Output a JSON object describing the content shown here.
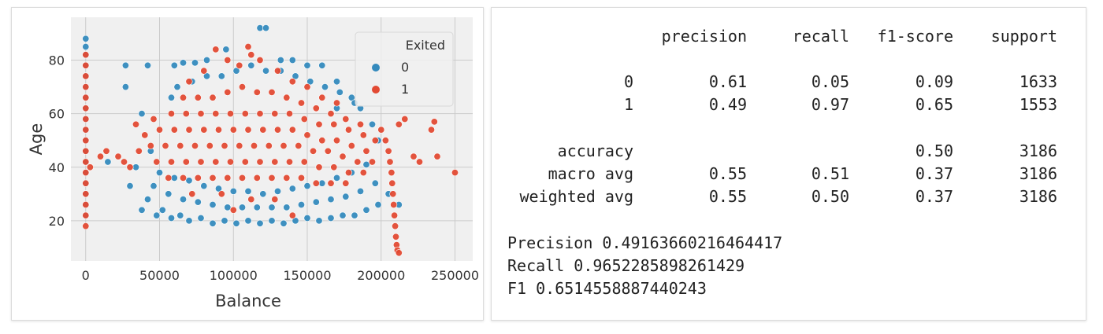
{
  "chart_data": {
    "type": "scatter",
    "title": "",
    "xlabel": "Balance",
    "ylabel": "Age",
    "xlim": [
      -10000,
      262000
    ],
    "ylim": [
      5,
      96
    ],
    "x_ticks": [
      0,
      50000,
      100000,
      150000,
      200000,
      250000
    ],
    "x_tick_labels": [
      "0",
      "50000",
      "100000",
      "150000",
      "200000",
      "250000"
    ],
    "y_ticks": [
      20,
      40,
      60,
      80
    ],
    "y_tick_labels": [
      "20",
      "40",
      "60",
      "80"
    ],
    "grid": true,
    "legend": {
      "title": "Exited",
      "placement": "top-right",
      "entries": [
        {
          "label": "0",
          "color": "#348ABD"
        },
        {
          "label": "1",
          "color": "#E24A33"
        }
      ]
    },
    "series": [
      {
        "name": "0",
        "color": "#348ABD",
        "points": [
          [
            0,
            88
          ],
          [
            0,
            85
          ],
          [
            0,
            82
          ],
          [
            0,
            78
          ],
          [
            0,
            74
          ],
          [
            0,
            70
          ],
          [
            0,
            66
          ],
          [
            0,
            62
          ],
          [
            0,
            58
          ],
          [
            0,
            54
          ],
          [
            0,
            50
          ],
          [
            0,
            46
          ],
          [
            0,
            42
          ],
          [
            0,
            38
          ],
          [
            0,
            34
          ],
          [
            0,
            30
          ],
          [
            0,
            26
          ],
          [
            0,
            22
          ],
          [
            27000,
            78
          ],
          [
            27000,
            70
          ],
          [
            42000,
            78
          ],
          [
            38000,
            60
          ],
          [
            60000,
            78
          ],
          [
            66000,
            79
          ],
          [
            74000,
            79
          ],
          [
            82000,
            80
          ],
          [
            95000,
            84
          ],
          [
            118000,
            92
          ],
          [
            122000,
            92
          ],
          [
            132000,
            80
          ],
          [
            140000,
            80
          ],
          [
            150000,
            78
          ],
          [
            160000,
            78
          ],
          [
            170000,
            72
          ],
          [
            180000,
            66
          ],
          [
            186000,
            62
          ],
          [
            194000,
            56
          ],
          [
            38000,
            24
          ],
          [
            42000,
            28
          ],
          [
            48000,
            22
          ],
          [
            52000,
            24
          ],
          [
            58000,
            21
          ],
          [
            64000,
            22
          ],
          [
            70000,
            20
          ],
          [
            78000,
            21
          ],
          [
            86000,
            19
          ],
          [
            94000,
            20
          ],
          [
            102000,
            19
          ],
          [
            110000,
            20
          ],
          [
            118000,
            19
          ],
          [
            126000,
            20
          ],
          [
            134000,
            19
          ],
          [
            142000,
            20
          ],
          [
            150000,
            21
          ],
          [
            158000,
            20
          ],
          [
            166000,
            21
          ],
          [
            174000,
            22
          ],
          [
            182000,
            22
          ],
          [
            190000,
            24
          ],
          [
            198000,
            26
          ],
          [
            205000,
            30
          ],
          [
            212000,
            26
          ],
          [
            46000,
            33
          ],
          [
            56000,
            30
          ],
          [
            66000,
            28
          ],
          [
            76000,
            27
          ],
          [
            86000,
            26
          ],
          [
            96000,
            25
          ],
          [
            106000,
            25
          ],
          [
            116000,
            25
          ],
          [
            126000,
            25
          ],
          [
            136000,
            25
          ],
          [
            146000,
            26
          ],
          [
            156000,
            27
          ],
          [
            166000,
            28
          ],
          [
            176000,
            29
          ],
          [
            186000,
            31
          ],
          [
            196000,
            34
          ],
          [
            50000,
            38
          ],
          [
            60000,
            36
          ],
          [
            70000,
            35
          ],
          [
            80000,
            33
          ],
          [
            90000,
            32
          ],
          [
            100000,
            31
          ],
          [
            110000,
            31
          ],
          [
            120000,
            30
          ],
          [
            130000,
            31
          ],
          [
            140000,
            32
          ],
          [
            150000,
            33
          ],
          [
            160000,
            34
          ],
          [
            170000,
            36
          ],
          [
            180000,
            38
          ],
          [
            190000,
            41
          ],
          [
            62000,
            70
          ],
          [
            72000,
            72
          ],
          [
            82000,
            74
          ],
          [
            92000,
            74
          ],
          [
            102000,
            76
          ],
          [
            112000,
            78
          ],
          [
            122000,
            76
          ],
          [
            132000,
            76
          ],
          [
            142000,
            74
          ],
          [
            152000,
            72
          ],
          [
            162000,
            70
          ],
          [
            172000,
            68
          ],
          [
            182000,
            64
          ],
          [
            15000,
            42
          ],
          [
            30000,
            33
          ],
          [
            34000,
            40
          ],
          [
            44000,
            46
          ],
          [
            58000,
            66
          ],
          [
            170000,
            62
          ],
          [
            198000,
            50
          ]
        ]
      },
      {
        "name": "1",
        "color": "#E24A33",
        "points": [
          [
            0,
            82
          ],
          [
            0,
            78
          ],
          [
            0,
            74
          ],
          [
            0,
            70
          ],
          [
            0,
            66
          ],
          [
            0,
            62
          ],
          [
            0,
            58
          ],
          [
            0,
            54
          ],
          [
            0,
            50
          ],
          [
            0,
            46
          ],
          [
            0,
            42
          ],
          [
            0,
            38
          ],
          [
            0,
            34
          ],
          [
            0,
            30
          ],
          [
            0,
            26
          ],
          [
            0,
            22
          ],
          [
            0,
            18
          ],
          [
            3000,
            40
          ],
          [
            88000,
            84
          ],
          [
            110000,
            85
          ],
          [
            112000,
            82
          ],
          [
            96000,
            80
          ],
          [
            118000,
            80
          ],
          [
            104000,
            78
          ],
          [
            80000,
            76
          ],
          [
            130000,
            76
          ],
          [
            70000,
            72
          ],
          [
            140000,
            72
          ],
          [
            150000,
            70
          ],
          [
            160000,
            66
          ],
          [
            170000,
            64
          ],
          [
            66000,
            66
          ],
          [
            76000,
            66
          ],
          [
            86000,
            66
          ],
          [
            96000,
            68
          ],
          [
            106000,
            70
          ],
          [
            116000,
            68
          ],
          [
            126000,
            68
          ],
          [
            136000,
            66
          ],
          [
            146000,
            64
          ],
          [
            156000,
            62
          ],
          [
            166000,
            60
          ],
          [
            176000,
            58
          ],
          [
            186000,
            56
          ],
          [
            58000,
            60
          ],
          [
            68000,
            60
          ],
          [
            78000,
            60
          ],
          [
            88000,
            60
          ],
          [
            98000,
            60
          ],
          [
            108000,
            60
          ],
          [
            118000,
            60
          ],
          [
            128000,
            60
          ],
          [
            138000,
            60
          ],
          [
            148000,
            58
          ],
          [
            158000,
            56
          ],
          [
            168000,
            56
          ],
          [
            178000,
            54
          ],
          [
            188000,
            52
          ],
          [
            196000,
            50
          ],
          [
            50000,
            54
          ],
          [
            60000,
            54
          ],
          [
            70000,
            54
          ],
          [
            80000,
            54
          ],
          [
            90000,
            54
          ],
          [
            100000,
            54
          ],
          [
            110000,
            54
          ],
          [
            120000,
            54
          ],
          [
            130000,
            54
          ],
          [
            140000,
            54
          ],
          [
            150000,
            52
          ],
          [
            160000,
            50
          ],
          [
            170000,
            50
          ],
          [
            180000,
            48
          ],
          [
            190000,
            46
          ],
          [
            44000,
            48
          ],
          [
            54000,
            48
          ],
          [
            64000,
            48
          ],
          [
            74000,
            48
          ],
          [
            84000,
            48
          ],
          [
            94000,
            48
          ],
          [
            104000,
            48
          ],
          [
            114000,
            48
          ],
          [
            124000,
            48
          ],
          [
            134000,
            48
          ],
          [
            144000,
            48
          ],
          [
            154000,
            46
          ],
          [
            164000,
            46
          ],
          [
            174000,
            44
          ],
          [
            184000,
            42
          ],
          [
            194000,
            42
          ],
          [
            48000,
            42
          ],
          [
            58000,
            42
          ],
          [
            68000,
            42
          ],
          [
            78000,
            42
          ],
          [
            88000,
            42
          ],
          [
            98000,
            42
          ],
          [
            108000,
            42
          ],
          [
            118000,
            42
          ],
          [
            128000,
            42
          ],
          [
            138000,
            42
          ],
          [
            148000,
            42
          ],
          [
            158000,
            40
          ],
          [
            168000,
            40
          ],
          [
            178000,
            38
          ],
          [
            188000,
            38
          ],
          [
            56000,
            36
          ],
          [
            66000,
            36
          ],
          [
            76000,
            36
          ],
          [
            86000,
            36
          ],
          [
            96000,
            36
          ],
          [
            106000,
            36
          ],
          [
            116000,
            36
          ],
          [
            126000,
            36
          ],
          [
            136000,
            36
          ],
          [
            146000,
            36
          ],
          [
            156000,
            34
          ],
          [
            166000,
            34
          ],
          [
            176000,
            34
          ],
          [
            72000,
            30
          ],
          [
            92000,
            30
          ],
          [
            112000,
            28
          ],
          [
            128000,
            28
          ],
          [
            140000,
            22
          ],
          [
            100000,
            24
          ],
          [
            10000,
            44
          ],
          [
            14000,
            46
          ],
          [
            22000,
            44
          ],
          [
            26000,
            42
          ],
          [
            30000,
            40
          ],
          [
            36000,
            46
          ],
          [
            40000,
            52
          ],
          [
            34000,
            56
          ],
          [
            46000,
            58
          ],
          [
            200000,
            54
          ],
          [
            203000,
            50
          ],
          [
            205000,
            46
          ],
          [
            206000,
            42
          ],
          [
            207000,
            38
          ],
          [
            207500,
            34
          ],
          [
            208000,
            30
          ],
          [
            208500,
            26
          ],
          [
            209000,
            22
          ],
          [
            209500,
            18
          ],
          [
            210000,
            14
          ],
          [
            210500,
            11
          ],
          [
            211000,
            9
          ],
          [
            212000,
            8
          ],
          [
            212000,
            56
          ],
          [
            216000,
            58
          ],
          [
            222000,
            44
          ],
          [
            226000,
            42
          ],
          [
            234000,
            54
          ],
          [
            236000,
            57
          ],
          [
            238000,
            44
          ],
          [
            250000,
            38
          ]
        ]
      }
    ]
  },
  "report": {
    "headers": [
      "precision",
      "recall",
      "f1-score",
      "support"
    ],
    "rows": [
      {
        "label": "0",
        "values": [
          "0.61",
          "0.05",
          "0.09",
          "1633"
        ]
      },
      {
        "label": "1",
        "values": [
          "0.49",
          "0.97",
          "0.65",
          "1553"
        ]
      },
      {
        "label": "accuracy",
        "values": [
          "",
          "",
          "0.50",
          "3186"
        ]
      },
      {
        "label": "macro avg",
        "values": [
          "0.55",
          "0.51",
          "0.37",
          "3186"
        ]
      },
      {
        "label": "weighted avg",
        "values": [
          "0.55",
          "0.50",
          "0.37",
          "3186"
        ]
      }
    ],
    "summary": [
      "Precision 0.49163660216464417",
      "Recall 0.9652285898261429",
      "F1 0.6514558887440243"
    ]
  }
}
